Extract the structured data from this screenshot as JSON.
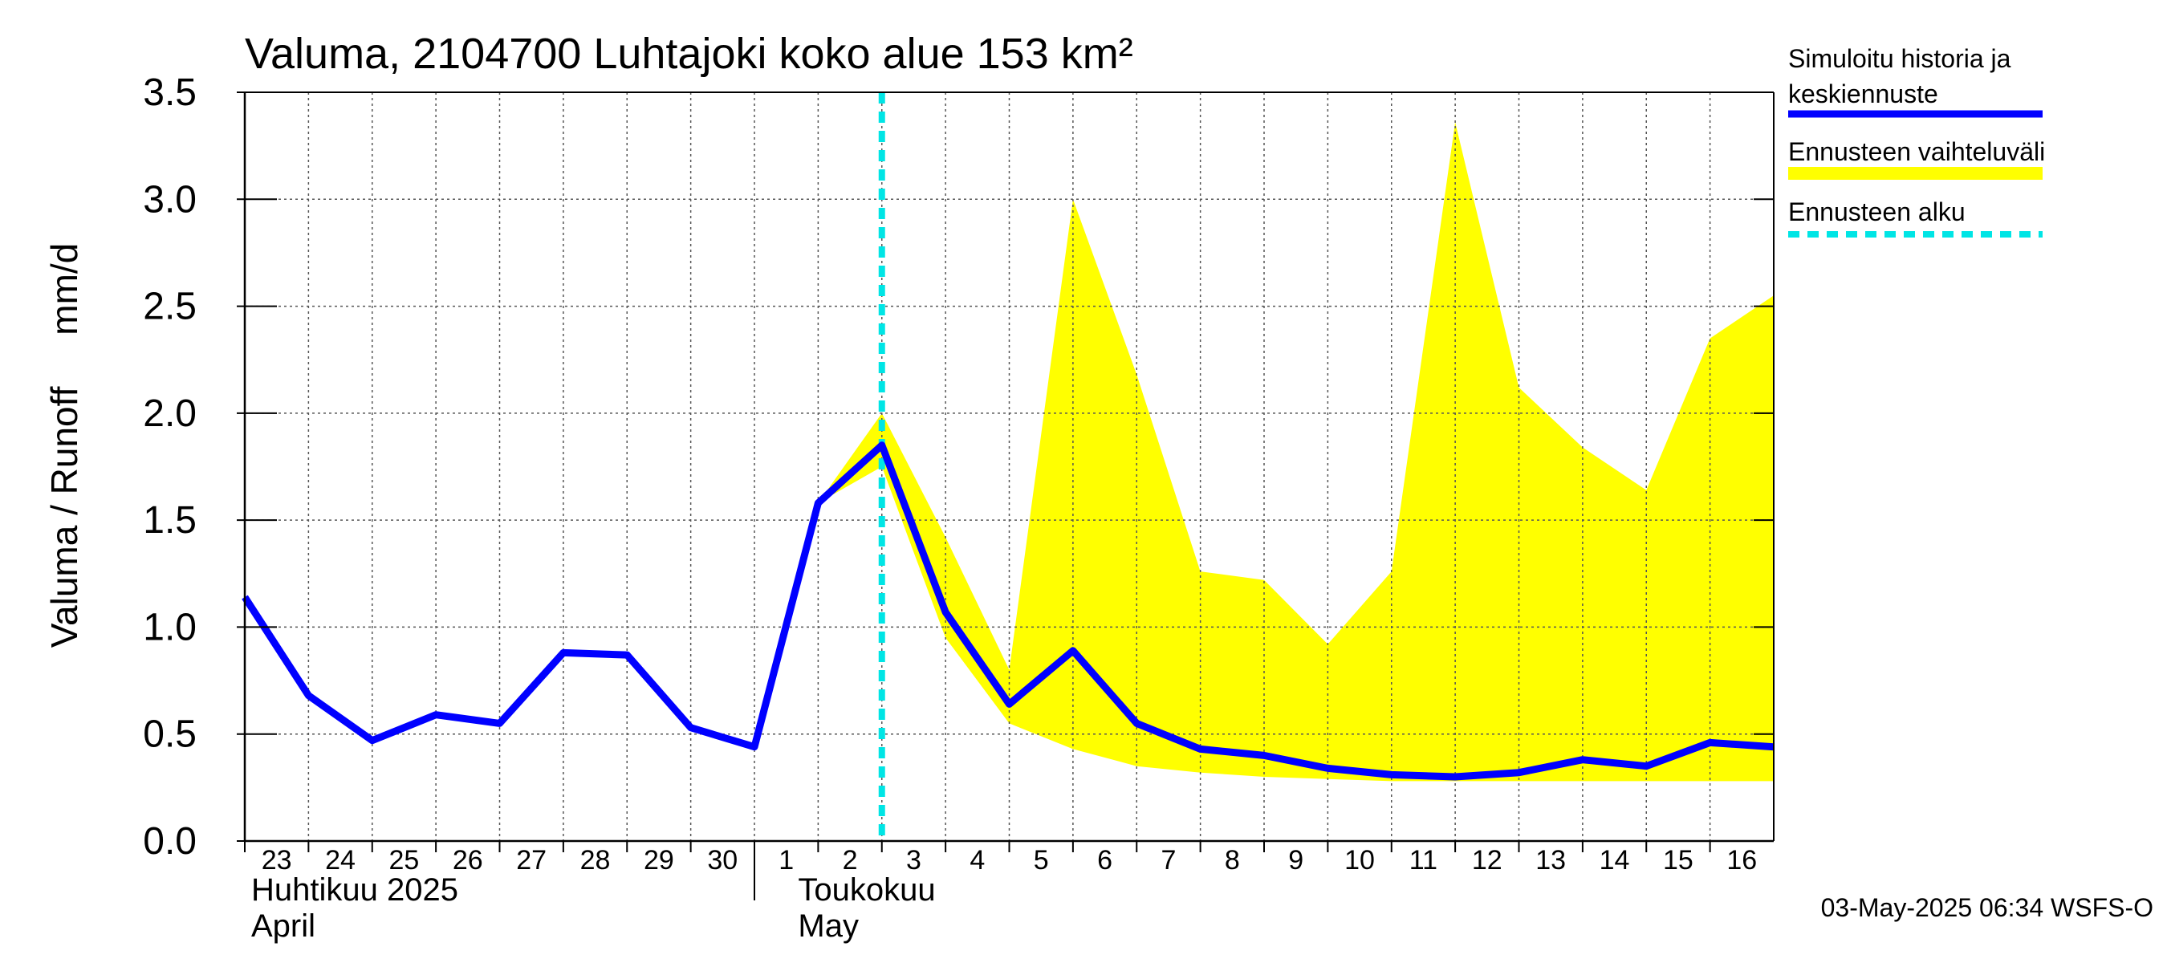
{
  "chart_data": {
    "type": "line",
    "title": "Valuma, 2104700 Luhtajoki koko alue 153 km²",
    "ylabel": "Valuma / Runoff     mm/d",
    "ylim": [
      0,
      3.5
    ],
    "yticks": [
      "0.0",
      "0.5",
      "1.0",
      "1.5",
      "2.0",
      "2.5",
      "3.0",
      "3.5"
    ],
    "x_tick_labels": [
      "23",
      "24",
      "25",
      "26",
      "27",
      "28",
      "29",
      "30",
      "1",
      "2",
      "3",
      "4",
      "5",
      "6",
      "7",
      "8",
      "9",
      "10",
      "11",
      "12",
      "13",
      "14",
      "15",
      "16"
    ],
    "month_labels": [
      {
        "line1": "Huhtikuu  2025",
        "line2": "April"
      },
      {
        "line1": "Toukokuu",
        "line2": "May"
      }
    ],
    "x_dates": [
      "2025-04-23",
      "2025-04-24",
      "2025-04-25",
      "2025-04-26",
      "2025-04-27",
      "2025-04-28",
      "2025-04-29",
      "2025-04-30",
      "2025-05-01",
      "2025-05-02",
      "2025-05-03",
      "2025-05-04",
      "2025-05-05",
      "2025-05-06",
      "2025-05-07",
      "2025-05-08",
      "2025-05-09",
      "2025-05-10",
      "2025-05-11",
      "2025-05-12",
      "2025-05-13",
      "2025-05-14",
      "2025-05-15",
      "2025-05-16",
      "2025-05-17"
    ],
    "x_range": [
      "2025-04-23",
      "2025-05-17"
    ],
    "forecast_start": "2025-05-03",
    "series": [
      {
        "name": "Simuloitu historia ja keskiennuste",
        "color": "#0000ff",
        "x": [
          "2025-04-23",
          "2025-04-24",
          "2025-04-25",
          "2025-04-26",
          "2025-04-27",
          "2025-04-28",
          "2025-04-29",
          "2025-04-30",
          "2025-05-01",
          "2025-05-02",
          "2025-05-03",
          "2025-05-04",
          "2025-05-05",
          "2025-05-06",
          "2025-05-07",
          "2025-05-08",
          "2025-05-09",
          "2025-05-10",
          "2025-05-11",
          "2025-05-12",
          "2025-05-13",
          "2025-05-14",
          "2025-05-15",
          "2025-05-16",
          "2025-05-17"
        ],
        "values": [
          1.14,
          0.68,
          0.47,
          0.59,
          0.55,
          0.88,
          0.87,
          0.53,
          0.44,
          1.58,
          1.85,
          1.07,
          0.64,
          0.89,
          0.55,
          0.43,
          0.4,
          0.34,
          0.31,
          0.3,
          0.32,
          0.38,
          0.35,
          0.46,
          0.44
        ]
      }
    ],
    "band": {
      "name": "Ennusteen vaihteluväli",
      "color": "#ffff00",
      "x": [
        "2025-05-02",
        "2025-05-03",
        "2025-05-04",
        "2025-05-05",
        "2025-05-06",
        "2025-05-07",
        "2025-05-08",
        "2025-05-09",
        "2025-05-10",
        "2025-05-11",
        "2025-05-12",
        "2025-05-13",
        "2025-05-14",
        "2025-05-15",
        "2025-05-16",
        "2025-05-17"
      ],
      "upper": [
        1.58,
        2.0,
        1.42,
        0.8,
        3.0,
        2.18,
        1.26,
        1.22,
        0.92,
        1.26,
        3.36,
        2.12,
        1.84,
        1.64,
        2.35,
        2.55
      ],
      "lower": [
        1.58,
        1.75,
        0.95,
        0.55,
        0.43,
        0.35,
        0.32,
        0.3,
        0.29,
        0.28,
        0.28,
        0.28,
        0.28,
        0.28,
        0.28,
        0.28
      ]
    },
    "legend": {
      "placement": "right",
      "entries": [
        {
          "label_lines": [
            "Simuloitu historia ja",
            "keskiennuste"
          ],
          "color": "#0000ff",
          "style": "solid"
        },
        {
          "label_lines": [
            "Ennusteen vaihteluväli"
          ],
          "color": "#ffff00",
          "style": "band"
        },
        {
          "label_lines": [
            "Ennusteen alku"
          ],
          "color": "#00e5e5",
          "style": "dashed"
        }
      ]
    },
    "grid": true,
    "footer": "03-May-2025 06:34 WSFS-O"
  }
}
